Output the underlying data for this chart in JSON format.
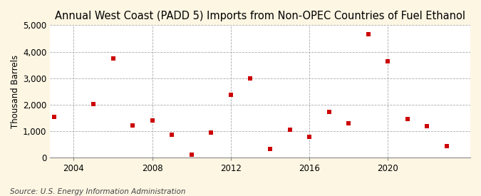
{
  "title": "Annual West Coast (PADD 5) Imports from Non-OPEC Countries of Fuel Ethanol",
  "ylabel": "Thousand Barrels",
  "source": "Source: U.S. Energy Information Administration",
  "bg_color": "#fdf6e3",
  "plot_bg_color": "#ffffff",
  "point_color": "#cc0000",
  "years": [
    2003,
    2005,
    2006,
    2007,
    2008,
    2009,
    2010,
    2011,
    2012,
    2013,
    2014,
    2015,
    2016,
    2017,
    2018,
    2019,
    2020,
    2021,
    2022,
    2023
  ],
  "values": [
    1550,
    2020,
    3750,
    1220,
    1420,
    860,
    120,
    940,
    2380,
    3000,
    330,
    1050,
    780,
    1720,
    1300,
    4650,
    3650,
    1450,
    1200,
    430
  ],
  "ylim": [
    0,
    5000
  ],
  "yticks": [
    0,
    1000,
    2000,
    3000,
    4000,
    5000
  ],
  "ytick_labels": [
    "0",
    "1,000",
    "2,000",
    "3,000",
    "4,000",
    "5,000"
  ],
  "xticks": [
    2004,
    2008,
    2012,
    2016,
    2020
  ],
  "xlim": [
    2002.8,
    2024.2
  ],
  "vgrid_years": [
    2004,
    2008,
    2012,
    2016,
    2020
  ],
  "title_fontsize": 10.5,
  "axis_fontsize": 8.5,
  "source_fontsize": 7.5
}
